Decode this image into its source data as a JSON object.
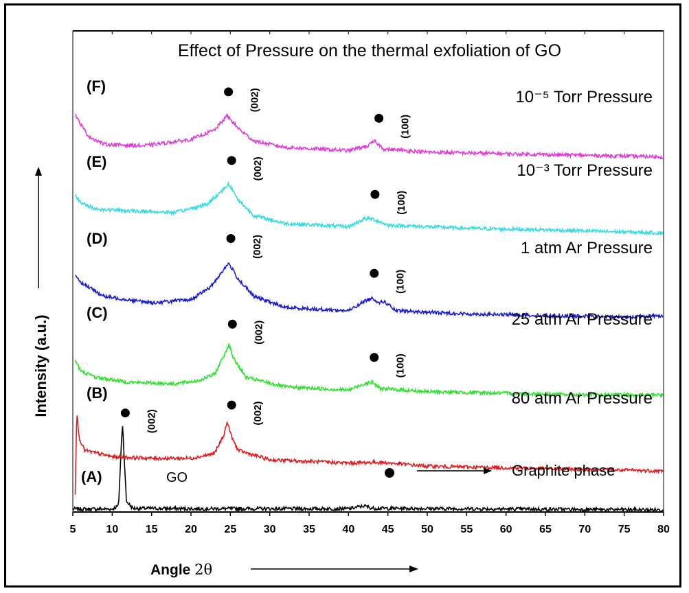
{
  "chart_data": {
    "type": "line",
    "title": "Effect of Pressure on the thermal exfoliation of GO",
    "xlabel_prefix": "Angle ",
    "xlabel_symbol": "2θ",
    "ylabel": "Intensity (a.u.)",
    "xlim": [
      5,
      80
    ],
    "x_ticks": [
      5,
      10,
      15,
      20,
      25,
      30,
      35,
      40,
      45,
      50,
      55,
      60,
      65,
      70,
      75,
      80
    ],
    "series": [
      {
        "id": "A",
        "letter": "(A)",
        "color": "#000000",
        "note": "GO",
        "baseline": 0.0,
        "points": [
          [
            5,
            0.1
          ],
          [
            10,
            0.1
          ],
          [
            10.8,
            0.3
          ],
          [
            11.3,
            5.6
          ],
          [
            11.8,
            0.6
          ],
          [
            12.6,
            0.15
          ],
          [
            20,
            0.12
          ],
          [
            40,
            0.12
          ],
          [
            42,
            0.3
          ],
          [
            43,
            0.15
          ],
          [
            80,
            0.05
          ]
        ],
        "peak_labels": [
          {
            "x": 11.4,
            "text": "(002)"
          }
        ]
      },
      {
        "id": "B",
        "letter": "(B)",
        "color": "#e41a1c",
        "pressure_value": "80 atm Ar Pressure",
        "points": [
          [
            5.3,
            1.1
          ],
          [
            5.5,
            6.3
          ],
          [
            5.8,
            4.6
          ],
          [
            6.5,
            3.8
          ],
          [
            10,
            3.4
          ],
          [
            15,
            3.3
          ],
          [
            20,
            3.3
          ],
          [
            23,
            3.6
          ],
          [
            24.2,
            4.8
          ],
          [
            24.6,
            5.6
          ],
          [
            25.2,
            4.6
          ],
          [
            26,
            3.8
          ],
          [
            30,
            3.2
          ],
          [
            40,
            3.0
          ],
          [
            44,
            3.05
          ],
          [
            50,
            2.8
          ],
          [
            60,
            2.7
          ],
          [
            70,
            2.6
          ],
          [
            80,
            2.5
          ]
        ],
        "peak_labels": [
          {
            "x": 24.9,
            "text": "(002)"
          }
        ]
      },
      {
        "id": "C",
        "letter": "(C)",
        "color": "#2ae32a",
        "pressure_value": "25 atm Ar Pressure",
        "points": [
          [
            5.3,
            9.5
          ],
          [
            6,
            8.8
          ],
          [
            8,
            8.4
          ],
          [
            12,
            8.1
          ],
          [
            18,
            8.0
          ],
          [
            21,
            8.2
          ],
          [
            23,
            8.6
          ],
          [
            24.3,
            9.9
          ],
          [
            24.8,
            10.5
          ],
          [
            25.4,
            9.6
          ],
          [
            27,
            8.4
          ],
          [
            32,
            7.8
          ],
          [
            40,
            7.6
          ],
          [
            42,
            8.0
          ],
          [
            43,
            8.1
          ],
          [
            44,
            7.7
          ],
          [
            50,
            7.5
          ],
          [
            60,
            7.4
          ],
          [
            70,
            7.3
          ],
          [
            80,
            7.3
          ]
        ],
        "peak_labels": [
          {
            "x": 25.0,
            "text": "(002)"
          },
          {
            "x": 43.0,
            "text": "(100)"
          }
        ]
      },
      {
        "id": "D",
        "letter": "(D)",
        "color": "#1c1cd4",
        "pressure_value": "1 atm Ar Pressure",
        "points": [
          [
            5.3,
            14.9
          ],
          [
            6,
            14.4
          ],
          [
            9,
            13.5
          ],
          [
            15,
            13.1
          ],
          [
            20,
            13.3
          ],
          [
            22.5,
            14.1
          ],
          [
            24,
            15.1
          ],
          [
            24.8,
            15.6
          ],
          [
            26,
            14.6
          ],
          [
            28,
            13.5
          ],
          [
            32,
            12.8
          ],
          [
            40,
            12.6
          ],
          [
            42,
            13.2
          ],
          [
            43,
            13.4
          ],
          [
            44,
            13.1
          ],
          [
            44.5,
            13.2
          ],
          [
            46,
            12.6
          ],
          [
            55,
            12.4
          ],
          [
            65,
            12.3
          ],
          [
            75,
            12.2
          ],
          [
            80,
            12.3
          ]
        ],
        "peak_labels": [
          {
            "x": 24.8,
            "text": "(002)"
          },
          {
            "x": 43.0,
            "text": "(100)"
          }
        ]
      },
      {
        "id": "E",
        "letter": "(E)",
        "color": "#33dbe6",
        "pressure_value": "10⁻³ Torr Pressure",
        "points": [
          [
            5.3,
            19.9
          ],
          [
            6,
            19.4
          ],
          [
            8,
            19.0
          ],
          [
            12,
            18.9
          ],
          [
            18,
            18.8
          ],
          [
            22,
            19.3
          ],
          [
            24,
            20.2
          ],
          [
            24.8,
            20.6
          ],
          [
            26,
            19.6
          ],
          [
            28,
            18.6
          ],
          [
            32,
            18.1
          ],
          [
            40,
            17.9
          ],
          [
            42,
            18.4
          ],
          [
            43,
            18.4
          ],
          [
            45,
            18.0
          ],
          [
            55,
            17.8
          ],
          [
            65,
            17.7
          ],
          [
            80,
            17.5
          ]
        ],
        "peak_labels": [
          {
            "x": 24.9,
            "text": "(002)"
          },
          {
            "x": 43.1,
            "text": "(100)"
          }
        ]
      },
      {
        "id": "F",
        "letter": "(F)",
        "color": "#e33ad8",
        "pressure_value": "10⁻⁵ Torr Pressure",
        "points": [
          [
            5.3,
            25.0
          ],
          [
            5.8,
            24.5
          ],
          [
            7,
            23.6
          ],
          [
            9,
            23.1
          ],
          [
            14,
            23.0
          ],
          [
            20,
            23.4
          ],
          [
            23,
            24.0
          ],
          [
            24.6,
            24.9
          ],
          [
            26,
            24.1
          ],
          [
            28,
            23.3
          ],
          [
            32,
            22.9
          ],
          [
            40,
            22.7
          ],
          [
            42.5,
            23.0
          ],
          [
            43.3,
            23.3
          ],
          [
            44.5,
            22.8
          ],
          [
            50,
            22.6
          ],
          [
            60,
            22.5
          ],
          [
            70,
            22.4
          ],
          [
            80,
            22.3
          ]
        ],
        "peak_labels": [
          {
            "x": 24.5,
            "text": "(002)"
          },
          {
            "x": 43.6,
            "text": "(100)"
          }
        ]
      }
    ],
    "legend": {
      "symbol": "●",
      "text": "Graphite phase"
    }
  }
}
